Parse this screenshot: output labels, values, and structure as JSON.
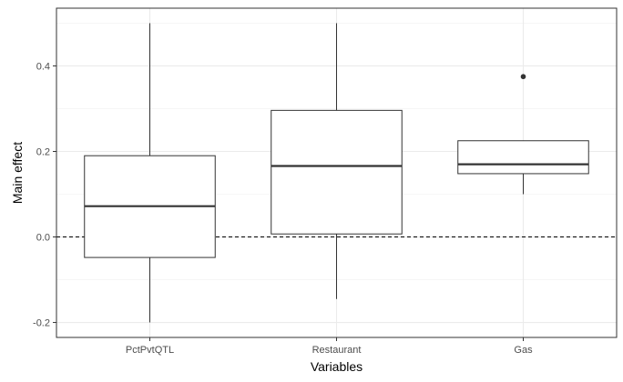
{
  "chart_data": {
    "type": "boxplot",
    "title": "",
    "xlabel": "Variables",
    "ylabel": "Main effect",
    "categories": [
      "PctPvtQTL",
      "Restaurant",
      "Gas"
    ],
    "ylim": [
      -0.235,
      0.535
    ],
    "y_ticks": [
      -0.2,
      0.0,
      0.2,
      0.4
    ],
    "y_tick_labels": [
      "-0.2",
      "0.0",
      "0.2",
      "0.4"
    ],
    "grid": true,
    "legend": "none",
    "reference_line": {
      "y": 0.0,
      "style": "dashed"
    },
    "boxes": [
      {
        "category": "PctPvtQTL",
        "whisker_low": -0.2,
        "q1": -0.048,
        "median": 0.072,
        "q3": 0.19,
        "whisker_high": 0.5,
        "outliers": []
      },
      {
        "category": "Restaurant",
        "whisker_low": -0.145,
        "q1": 0.007,
        "median": 0.166,
        "q3": 0.296,
        "whisker_high": 0.5,
        "outliers": []
      },
      {
        "category": "Gas",
        "whisker_low": 0.1,
        "q1": 0.148,
        "median": 0.17,
        "q3": 0.225,
        "whisker_high": 0.225,
        "outliers": [
          0.375
        ]
      }
    ]
  }
}
